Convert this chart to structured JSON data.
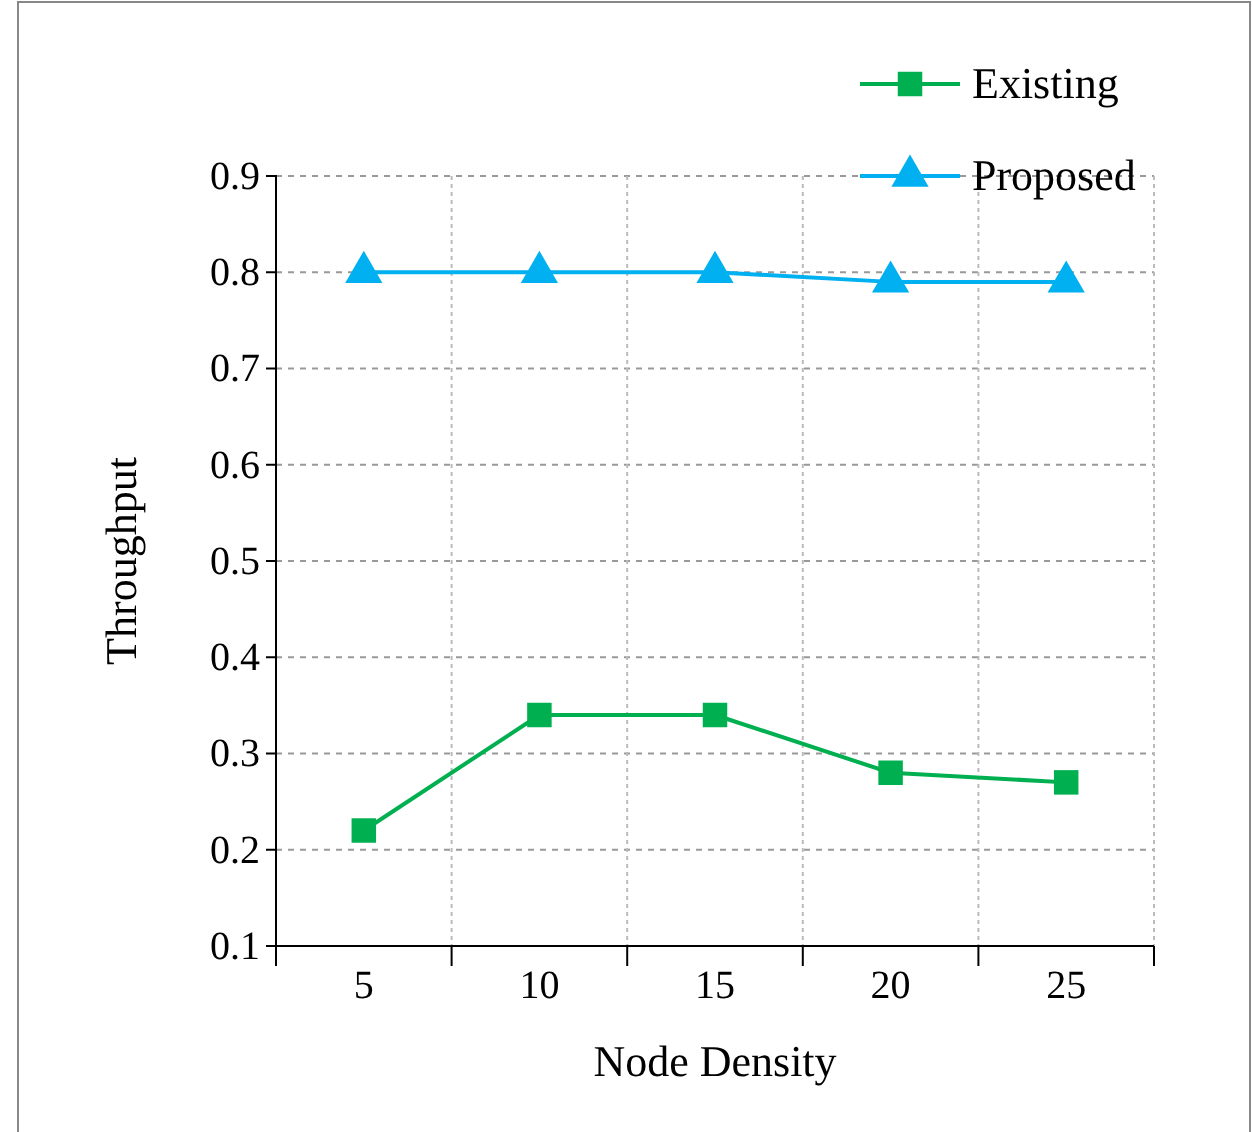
{
  "chart_data": {
    "type": "line",
    "xlabel": "Node Density",
    "ylabel": "Throughput",
    "categories": [
      "5",
      "10",
      "15",
      "20",
      "25"
    ],
    "series": [
      {
        "name": "Existing",
        "color": "#00b050",
        "marker": "square",
        "values": [
          0.22,
          0.34,
          0.34,
          0.28,
          0.27
        ]
      },
      {
        "name": "Proposed",
        "color": "#00b0f0",
        "marker": "triangle",
        "values": [
          0.8,
          0.8,
          0.8,
          0.79,
          0.79
        ]
      }
    ],
    "ylim": [
      0.1,
      0.9
    ],
    "yticks": [
      0.1,
      0.2,
      0.3,
      0.4,
      0.5,
      0.6,
      0.7,
      0.8,
      0.9
    ],
    "grid": true,
    "legend": "top right"
  }
}
